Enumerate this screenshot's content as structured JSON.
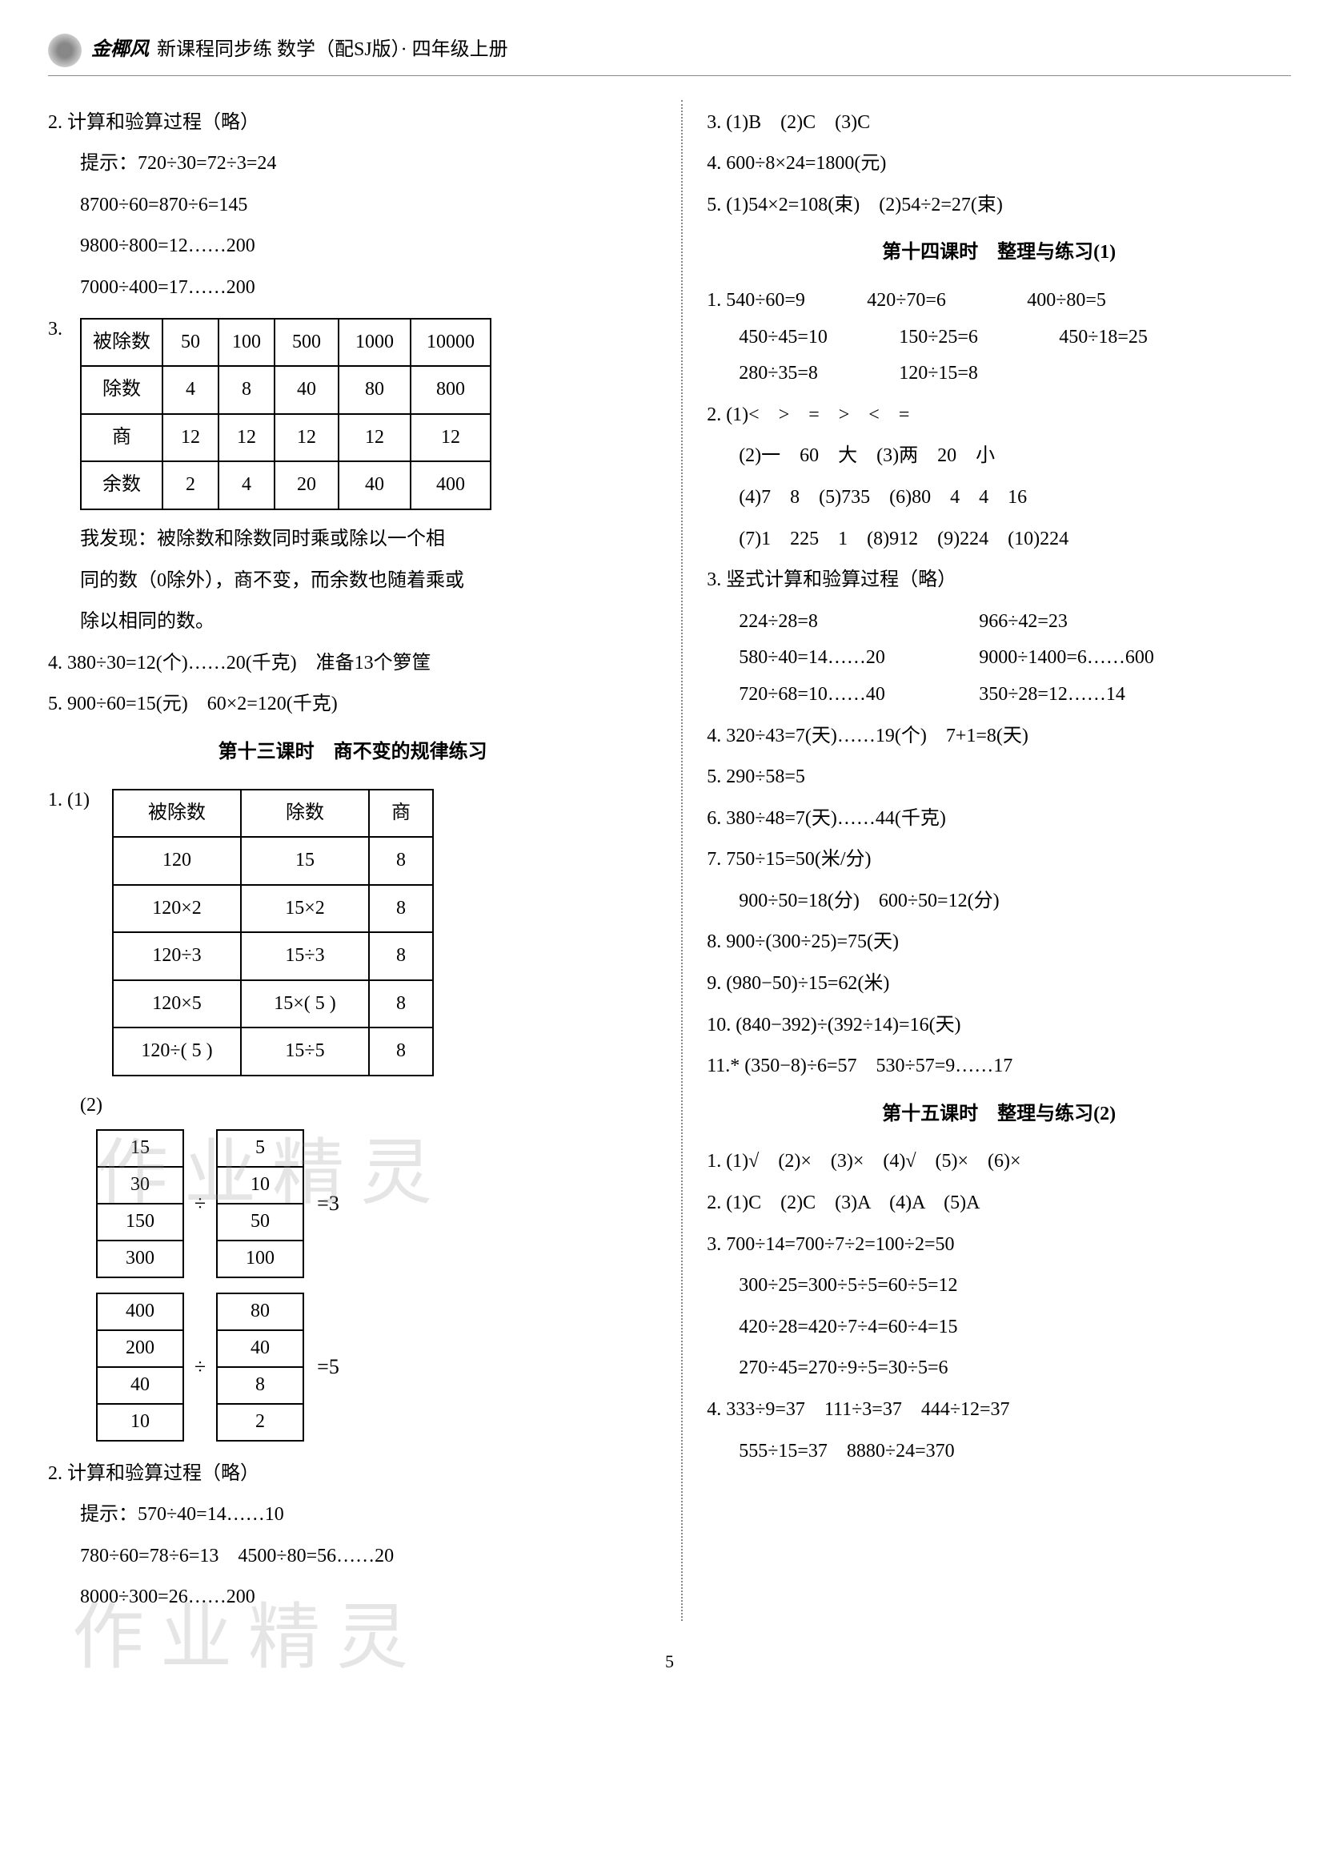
{
  "header": {
    "brand": "金椰风",
    "sub": "新课程同步练  数学（配SJ版）· 四年级上册"
  },
  "left": {
    "l2a": "2.  计算和验算过程（略）",
    "l2b": "提示：720÷30=72÷3=24",
    "l2c": "8700÷60=870÷6=145",
    "l2d": "9800÷800=12……200",
    "l2e": "7000÷400=17……200",
    "l3num": "3.",
    "table3": {
      "rows": [
        [
          "被除数",
          "50",
          "100",
          "500",
          "1000",
          "10000"
        ],
        [
          "除数",
          "4",
          "8",
          "40",
          "80",
          "800"
        ],
        [
          "商",
          "12",
          "12",
          "12",
          "12",
          "12"
        ],
        [
          "余数",
          "2",
          "4",
          "20",
          "40",
          "400"
        ]
      ]
    },
    "l3txt1": "我发现：被除数和除数同时乘或除以一个相",
    "l3txt2": "同的数（0除外），商不变，而余数也随着乘或",
    "l3txt3": "除以相同的数。",
    "l4": "4.  380÷30=12(个)……20(千克)　准备13个箩筐",
    "l5": "5.  900÷60=15(元)　60×2=120(千克)",
    "sec13": "第十三课时　商不变的规律练习",
    "l1_1num": "1.  (1)",
    "table1_1": {
      "rows": [
        [
          "被除数",
          "除数",
          "商"
        ],
        [
          "120",
          "15",
          "8"
        ],
        [
          "120×2",
          "15×2",
          "8"
        ],
        [
          "120÷3",
          "15÷3",
          "8"
        ],
        [
          "120×5",
          "15×( 5 )",
          "8"
        ],
        [
          "120÷( 5 )",
          "15÷5",
          "8"
        ]
      ]
    },
    "l1_2num": "(2)",
    "ratioA": {
      "left": [
        "15",
        "30",
        "150",
        "300"
      ],
      "op": "÷",
      "right": [
        "5",
        "10",
        "50",
        "100"
      ],
      "eq": "=3"
    },
    "ratioB": {
      "left": [
        "400",
        "200",
        "40",
        "10"
      ],
      "op": "÷",
      "right": [
        "80",
        "40",
        "8",
        "2"
      ],
      "eq": "=5"
    },
    "l2_2a": "2.  计算和验算过程（略）",
    "l2_2b": "提示：570÷40=14……10",
    "l2_2c": "780÷60=78÷6=13　4500÷80=56……20",
    "l2_2d": "8000÷300=26……200"
  },
  "right": {
    "r3": "3.  (1)B　(2)C　(3)C",
    "r4": "4.  600÷8×24=1800(元)",
    "r5": "5.  (1)54×2=108(束)　(2)54÷2=27(束)",
    "sec14": "第十四课时　整理与练习(1)",
    "r1a": "1.  540÷60=9",
    "r1b": "420÷70=6",
    "r1c": "400÷80=5",
    "r1d": "450÷45=10",
    "r1e": "150÷25=6",
    "r1f": "450÷18=25",
    "r1g": "280÷35=8",
    "r1h": "120÷15=8",
    "r2_1": "2.  (1)<　>　=　>　<　=",
    "r2_2": "(2)一　60　大　(3)两　20　小",
    "r2_3": "(4)7　8　(5)735　(6)80　4　4　16",
    "r2_4": "(7)1　225　1　(8)912　(9)224　(10)224",
    "r3a": "3.  竖式计算和验算过程（略）",
    "r3b": "224÷28=8",
    "r3c": "966÷42=23",
    "r3d": "580÷40=14……20",
    "r3e": "9000÷1400=6……600",
    "r3f": "720÷68=10……40",
    "r3g": "350÷28=12……14",
    "r4a": "4.  320÷43=7(天)……19(个)　7+1=8(天)",
    "r5a": "5.  290÷58=5",
    "r6a": "6.  380÷48=7(天)……44(千克)",
    "r7a": "7.  750÷15=50(米/分)",
    "r7b": "900÷50=18(分)　600÷50=12(分)",
    "r8a": "8.  900÷(300÷25)=75(天)",
    "r9a": "9.  (980−50)÷15=62(米)",
    "r10a": "10.  (840−392)÷(392÷14)=16(天)",
    "r11a": "11.*  (350−8)÷6=57　530÷57=9……17",
    "sec15": "第十五课时　整理与练习(2)",
    "s1": "1.  (1)√　(2)×　(3)×　(4)√　(5)×　(6)×",
    "s2": "2.  (1)C　(2)C　(3)A　(4)A　(5)A",
    "s3a": "3.  700÷14=700÷7÷2=100÷2=50",
    "s3b": "300÷25=300÷5÷5=60÷5=12",
    "s3c": "420÷28=420÷7÷4=60÷4=15",
    "s3d": "270÷45=270÷9÷5=30÷5=6",
    "s4a": "4.  333÷9=37　111÷3=37　444÷12=37",
    "s4b": "555÷15=37　8880÷24=370"
  },
  "watermark": "作业精灵",
  "pageNum": "5"
}
